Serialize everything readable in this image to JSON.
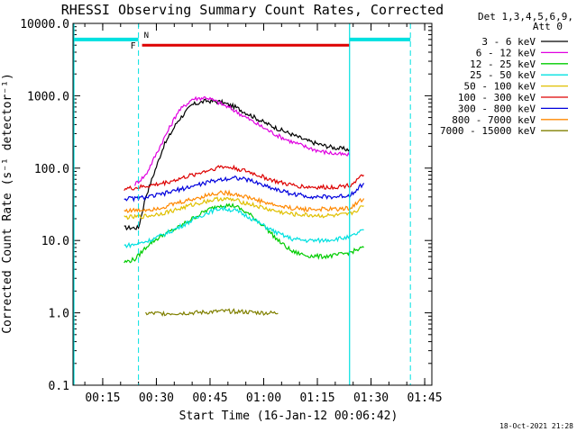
{
  "chart_data": {
    "type": "line",
    "title": "RHESSI Observing Summary Count Rates, Corrected",
    "xlabel": "Start Time (16-Jan-12 00:06:42)",
    "ylabel": "Corrected Count Rate (s⁻¹ detector⁻¹)",
    "yscale": "log",
    "ylim": [
      0.1,
      10000
    ],
    "xlim_minutes": [
      6.7,
      107
    ],
    "y_ticks": [
      0.1,
      1.0,
      10.0,
      100.0,
      1000.0,
      10000.0
    ],
    "y_tick_labels": [
      "0.1",
      "1.0",
      "10.0",
      "100.0",
      "1000.0",
      "10000.0"
    ],
    "x_ticks": [
      15,
      30,
      45,
      60,
      75,
      90,
      105
    ],
    "x_tick_labels": [
      "00:15",
      "00:30",
      "00:45",
      "01:00",
      "01:15",
      "01:30",
      "01:45"
    ],
    "legend_header": [
      "Det 1,3,4,5,6,9,",
      "Att 0"
    ],
    "series": [
      {
        "name": "3 - 6 keV",
        "color": "#000000",
        "points": [
          [
            21,
            15
          ],
          [
            25,
            15
          ],
          [
            27,
            40
          ],
          [
            32,
            200
          ],
          [
            36,
            450
          ],
          [
            40,
            750
          ],
          [
            44,
            850
          ],
          [
            48,
            820
          ],
          [
            52,
            700
          ],
          [
            56,
            550
          ],
          [
            60,
            430
          ],
          [
            64,
            350
          ],
          [
            68,
            290
          ],
          [
            72,
            240
          ],
          [
            76,
            210
          ],
          [
            80,
            190
          ],
          [
            84,
            180
          ]
        ]
      },
      {
        "name": "6 - 12 keV",
        "color": "#e000e0",
        "points": [
          [
            24,
            60
          ],
          [
            27,
            80
          ],
          [
            32,
            250
          ],
          [
            36,
            600
          ],
          [
            40,
            900
          ],
          [
            44,
            950
          ],
          [
            48,
            780
          ],
          [
            52,
            620
          ],
          [
            56,
            470
          ],
          [
            60,
            360
          ],
          [
            64,
            280
          ],
          [
            68,
            230
          ],
          [
            72,
            195
          ],
          [
            76,
            170
          ],
          [
            80,
            158
          ],
          [
            84,
            150
          ]
        ]
      },
      {
        "name": "12 - 25 keV",
        "color": "#00cc00",
        "points": [
          [
            21,
            5
          ],
          [
            24,
            5.5
          ],
          [
            28,
            9
          ],
          [
            32,
            12
          ],
          [
            36,
            15
          ],
          [
            40,
            20
          ],
          [
            44,
            26
          ],
          [
            48,
            31
          ],
          [
            52,
            30
          ],
          [
            56,
            23
          ],
          [
            60,
            16
          ],
          [
            64,
            10
          ],
          [
            68,
            7
          ],
          [
            72,
            6.2
          ],
          [
            76,
            6
          ],
          [
            80,
            6.2
          ],
          [
            84,
            6.8
          ],
          [
            88,
            8
          ]
        ]
      },
      {
        "name": "25 - 50 keV",
        "color": "#00e0e0",
        "points": [
          [
            21,
            8.5
          ],
          [
            24,
            8.8
          ],
          [
            28,
            10
          ],
          [
            32,
            12
          ],
          [
            36,
            15
          ],
          [
            40,
            19
          ],
          [
            44,
            24
          ],
          [
            48,
            28
          ],
          [
            52,
            26
          ],
          [
            56,
            21
          ],
          [
            60,
            16
          ],
          [
            64,
            12.5
          ],
          [
            68,
            10.5
          ],
          [
            72,
            10
          ],
          [
            76,
            10
          ],
          [
            80,
            10.5
          ],
          [
            84,
            11
          ],
          [
            88,
            14
          ]
        ]
      },
      {
        "name": "50 - 100 keV",
        "color": "#e0c000",
        "points": [
          [
            21,
            21
          ],
          [
            24,
            21
          ],
          [
            28,
            22
          ],
          [
            32,
            24
          ],
          [
            36,
            27
          ],
          [
            40,
            31
          ],
          [
            44,
            35
          ],
          [
            48,
            38
          ],
          [
            52,
            36
          ],
          [
            56,
            32
          ],
          [
            60,
            28
          ],
          [
            64,
            25
          ],
          [
            68,
            23
          ],
          [
            72,
            22.5
          ],
          [
            76,
            22
          ],
          [
            80,
            22
          ],
          [
            84,
            23
          ],
          [
            88,
            30
          ]
        ]
      },
      {
        "name": "100 - 300 keV",
        "color": "#dd0000",
        "points": [
          [
            21,
            52
          ],
          [
            24,
            53
          ],
          [
            28,
            57
          ],
          [
            32,
            62
          ],
          [
            36,
            70
          ],
          [
            40,
            80
          ],
          [
            44,
            92
          ],
          [
            48,
            105
          ],
          [
            52,
            100
          ],
          [
            56,
            88
          ],
          [
            60,
            75
          ],
          [
            64,
            64
          ],
          [
            68,
            58
          ],
          [
            72,
            55
          ],
          [
            76,
            54
          ],
          [
            80,
            55
          ],
          [
            84,
            58
          ],
          [
            88,
            80
          ]
        ]
      },
      {
        "name": "300 - 800 keV",
        "color": "#0000dd",
        "points": [
          [
            21,
            38
          ],
          [
            24,
            38
          ],
          [
            28,
            40
          ],
          [
            32,
            44
          ],
          [
            36,
            50
          ],
          [
            40,
            56
          ],
          [
            44,
            63
          ],
          [
            48,
            70
          ],
          [
            52,
            74
          ],
          [
            56,
            68
          ],
          [
            60,
            58
          ],
          [
            64,
            50
          ],
          [
            68,
            44
          ],
          [
            72,
            41
          ],
          [
            76,
            40
          ],
          [
            80,
            40
          ],
          [
            84,
            42
          ],
          [
            88,
            62
          ]
        ]
      },
      {
        "name": "800 - 7000 keV",
        "color": "#ff8800",
        "points": [
          [
            21,
            26
          ],
          [
            24,
            26
          ],
          [
            28,
            27
          ],
          [
            32,
            29
          ],
          [
            36,
            33
          ],
          [
            40,
            37
          ],
          [
            44,
            42
          ],
          [
            48,
            46
          ],
          [
            52,
            44
          ],
          [
            56,
            39
          ],
          [
            60,
            34
          ],
          [
            64,
            30
          ],
          [
            68,
            28
          ],
          [
            72,
            27
          ],
          [
            76,
            27
          ],
          [
            80,
            27
          ],
          [
            84,
            28
          ],
          [
            88,
            38
          ]
        ]
      },
      {
        "name": "7000 - 15000 keV",
        "color": "#808000",
        "points": [
          [
            27,
            0.98
          ],
          [
            32,
            0.98
          ],
          [
            36,
            0.99
          ],
          [
            40,
            1.0
          ],
          [
            44,
            1.02
          ],
          [
            48,
            1.05
          ],
          [
            52,
            1.05
          ],
          [
            56,
            1.02
          ],
          [
            60,
            1.0
          ],
          [
            64,
            0.99
          ]
        ]
      }
    ],
    "flags": [
      {
        "label": "N",
        "color": "#00e0e0",
        "note": "night"
      },
      {
        "label": "F",
        "color": "#dd0000",
        "note": "flare"
      }
    ],
    "timestamp": "18-Oct-2021 21:28"
  }
}
